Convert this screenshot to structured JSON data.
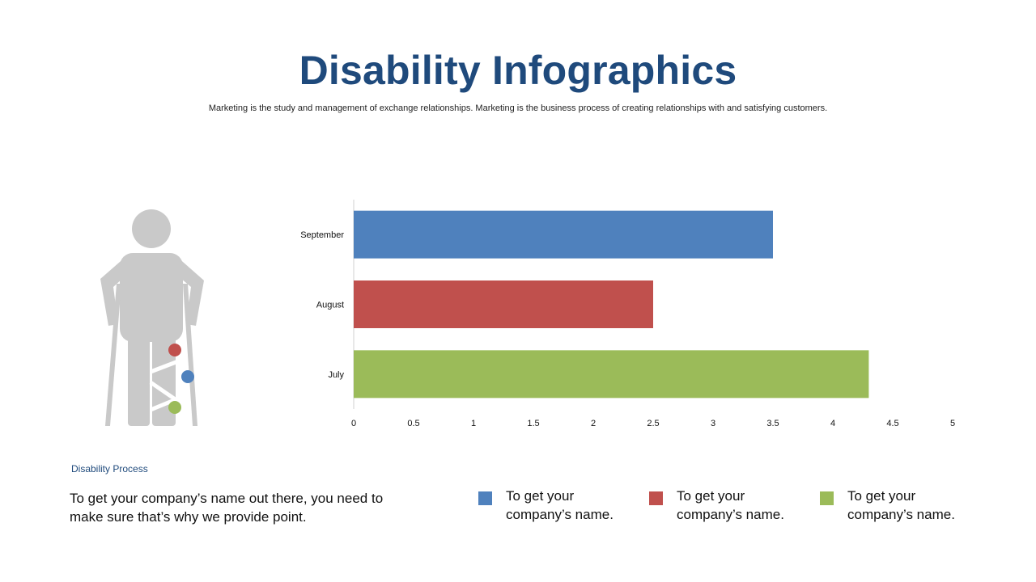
{
  "page": {
    "title": "Disability Infographics",
    "subtitle": "Marketing is the study and management of exchange relationships. Marketing is the  business process of creating relationships with and satisfying customers."
  },
  "colors": {
    "title": "#1f4a7c",
    "blue": "#4f81bd",
    "red": "#c0504d",
    "green": "#9bbb59",
    "figure": "#c9c9c9"
  },
  "figure": {
    "icon": "person-with-crutches-icon",
    "markers": [
      "red",
      "blue",
      "green"
    ]
  },
  "chart_data": {
    "type": "bar",
    "orientation": "horizontal",
    "categories": [
      "September",
      "August",
      "July"
    ],
    "values": [
      3.5,
      2.5,
      4.3
    ],
    "colors": [
      "#4f81bd",
      "#c0504d",
      "#9bbb59"
    ],
    "xlim": [
      0,
      5
    ],
    "xticks": [
      "0",
      "0.5",
      "1",
      "1.5",
      "2",
      "2.5",
      "3",
      "3.5",
      "4",
      "4.5",
      "5"
    ],
    "grid": false,
    "legend": "none"
  },
  "section_label": "Disability Process",
  "body_text": "To get your company’s name out there, you need to make sure that’s why we provide point.",
  "legend": [
    {
      "color": "#4f81bd",
      "text": "To get your company’s name."
    },
    {
      "color": "#c0504d",
      "text": "To get your company’s name."
    },
    {
      "color": "#9bbb59",
      "text": "To get your company’s name."
    }
  ]
}
